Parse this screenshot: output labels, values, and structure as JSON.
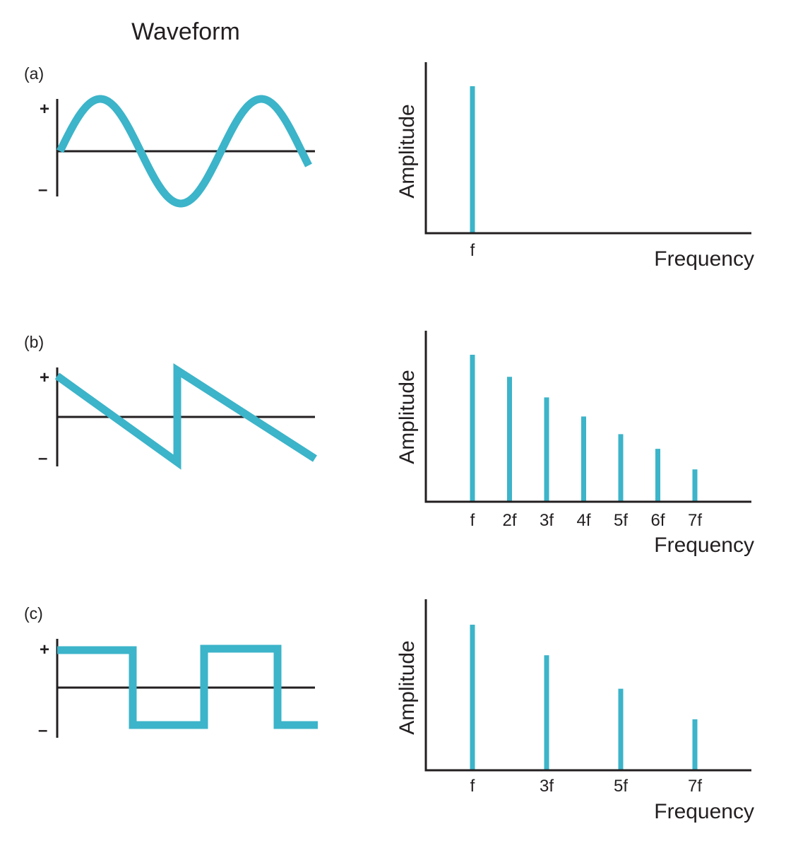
{
  "title": "Waveform",
  "colors": {
    "accent": "#3cb4c9",
    "ink": "#231f20"
  },
  "signs": {
    "plus": "+",
    "minus": "–"
  },
  "panels": [
    {
      "label": "(a)",
      "waveform": "sine",
      "spectrum": {
        "xlabel": "Frequency",
        "ylabel": "Amplitude",
        "lines": [
          {
            "label": "f",
            "value": 1.0
          }
        ]
      }
    },
    {
      "label": "(b)",
      "waveform": "sawtooth",
      "spectrum": {
        "xlabel": "Frequency",
        "ylabel": "Amplitude",
        "lines": [
          {
            "label": "f",
            "value": 1.0
          },
          {
            "label": "2f",
            "value": 0.85
          },
          {
            "label": "3f",
            "value": 0.71
          },
          {
            "label": "4f",
            "value": 0.58
          },
          {
            "label": "5f",
            "value": 0.46
          },
          {
            "label": "6f",
            "value": 0.36
          },
          {
            "label": "7f",
            "value": 0.22
          }
        ]
      }
    },
    {
      "label": "(c)",
      "waveform": "square",
      "spectrum": {
        "xlabel": "Frequency",
        "ylabel": "Amplitude",
        "lines": [
          {
            "label": "f",
            "value": 1.0
          },
          {
            "label": "3f",
            "value": 0.79
          },
          {
            "label": "5f",
            "value": 0.56
          },
          {
            "label": "7f",
            "value": 0.35
          }
        ]
      }
    }
  ]
}
